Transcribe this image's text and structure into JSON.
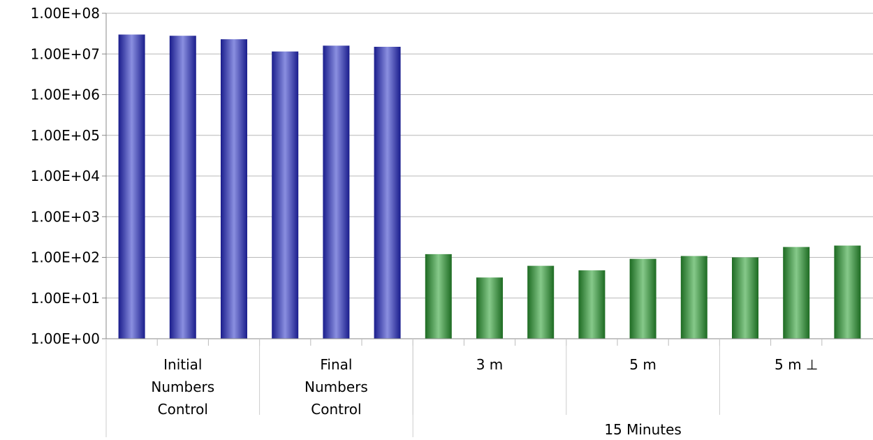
{
  "chart_data": {
    "type": "bar",
    "yscale": "log",
    "ylim": [
      1,
      100000000
    ],
    "y_tick_labels": [
      "1.00E+00",
      "1.00E+01",
      "1.00E+02",
      "1.00E+03",
      "1.00E+04",
      "1.00E+05",
      "1.00E+06",
      "1.00E+07",
      "1.00E+08"
    ],
    "grid": true,
    "legend": "none",
    "values": [
      30000000,
      28000000,
      23000000,
      11500000,
      16000000,
      15000000,
      120,
      32,
      62,
      48,
      92,
      108,
      100,
      180,
      195
    ],
    "bar_colors": [
      "#2b2fa5",
      "#2b2fa5",
      "#2b2fa5",
      "#2b2fa5",
      "#2b2fa5",
      "#2b2fa5",
      "#2e7d32",
      "#2e7d32",
      "#2e7d32",
      "#2e7d32",
      "#2e7d32",
      "#2e7d32",
      "#2e7d32",
      "#2e7d32",
      "#2e7d32"
    ],
    "groups": [
      {
        "label": [
          "Initial",
          "Numbers",
          "Control"
        ],
        "count": 3
      },
      {
        "label": [
          "Final",
          "Numbers",
          "Control"
        ],
        "count": 3
      },
      {
        "label": [
          "3 m"
        ],
        "count": 3
      },
      {
        "label": [
          "5 m"
        ],
        "count": 3
      },
      {
        "label": [
          "5 m ⊥"
        ],
        "count": 3
      }
    ],
    "supergroups": [
      {
        "label": "",
        "groups": 2
      },
      {
        "label": "15 Minutes",
        "groups": 3
      }
    ]
  }
}
